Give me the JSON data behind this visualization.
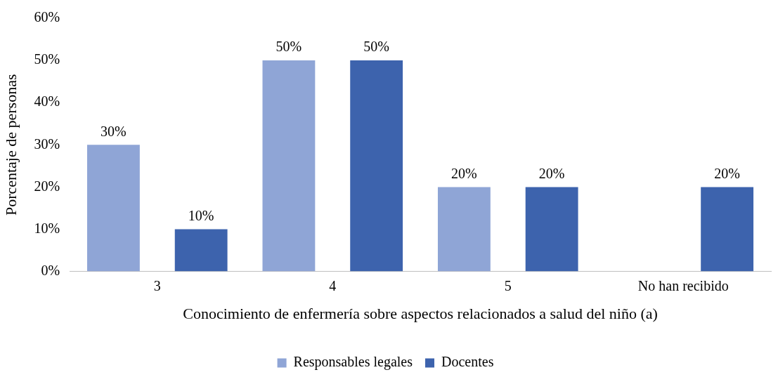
{
  "chart_data": {
    "type": "bar",
    "xlabel": "Conocimiento de enfermería sobre aspectos relacionados a salud del niño (a)",
    "ylabel": "Porcentaje de personas",
    "categories": [
      "3",
      "4",
      "5",
      "No han recibido"
    ],
    "series": [
      {
        "name": "Responsables legales",
        "color": "#8fa5d6",
        "values": [
          30,
          50,
          20,
          null
        ],
        "value_labels": [
          "30%",
          "50%",
          "20%",
          null
        ]
      },
      {
        "name": "Docentes",
        "color": "#3d63ad",
        "values": [
          10,
          50,
          20,
          20
        ],
        "value_labels": [
          "10%",
          "50%",
          "20%",
          "20%"
        ]
      }
    ],
    "ylim": [
      0,
      60
    ],
    "yticks": [
      {
        "value": 0,
        "label": "0%"
      },
      {
        "value": 10,
        "label": "10%"
      },
      {
        "value": 20,
        "label": "20%"
      },
      {
        "value": 30,
        "label": "30%"
      },
      {
        "value": 40,
        "label": "40%"
      },
      {
        "value": 50,
        "label": "50%"
      },
      {
        "value": 60,
        "label": "60%"
      }
    ],
    "grid": false,
    "legend": "bottom"
  }
}
